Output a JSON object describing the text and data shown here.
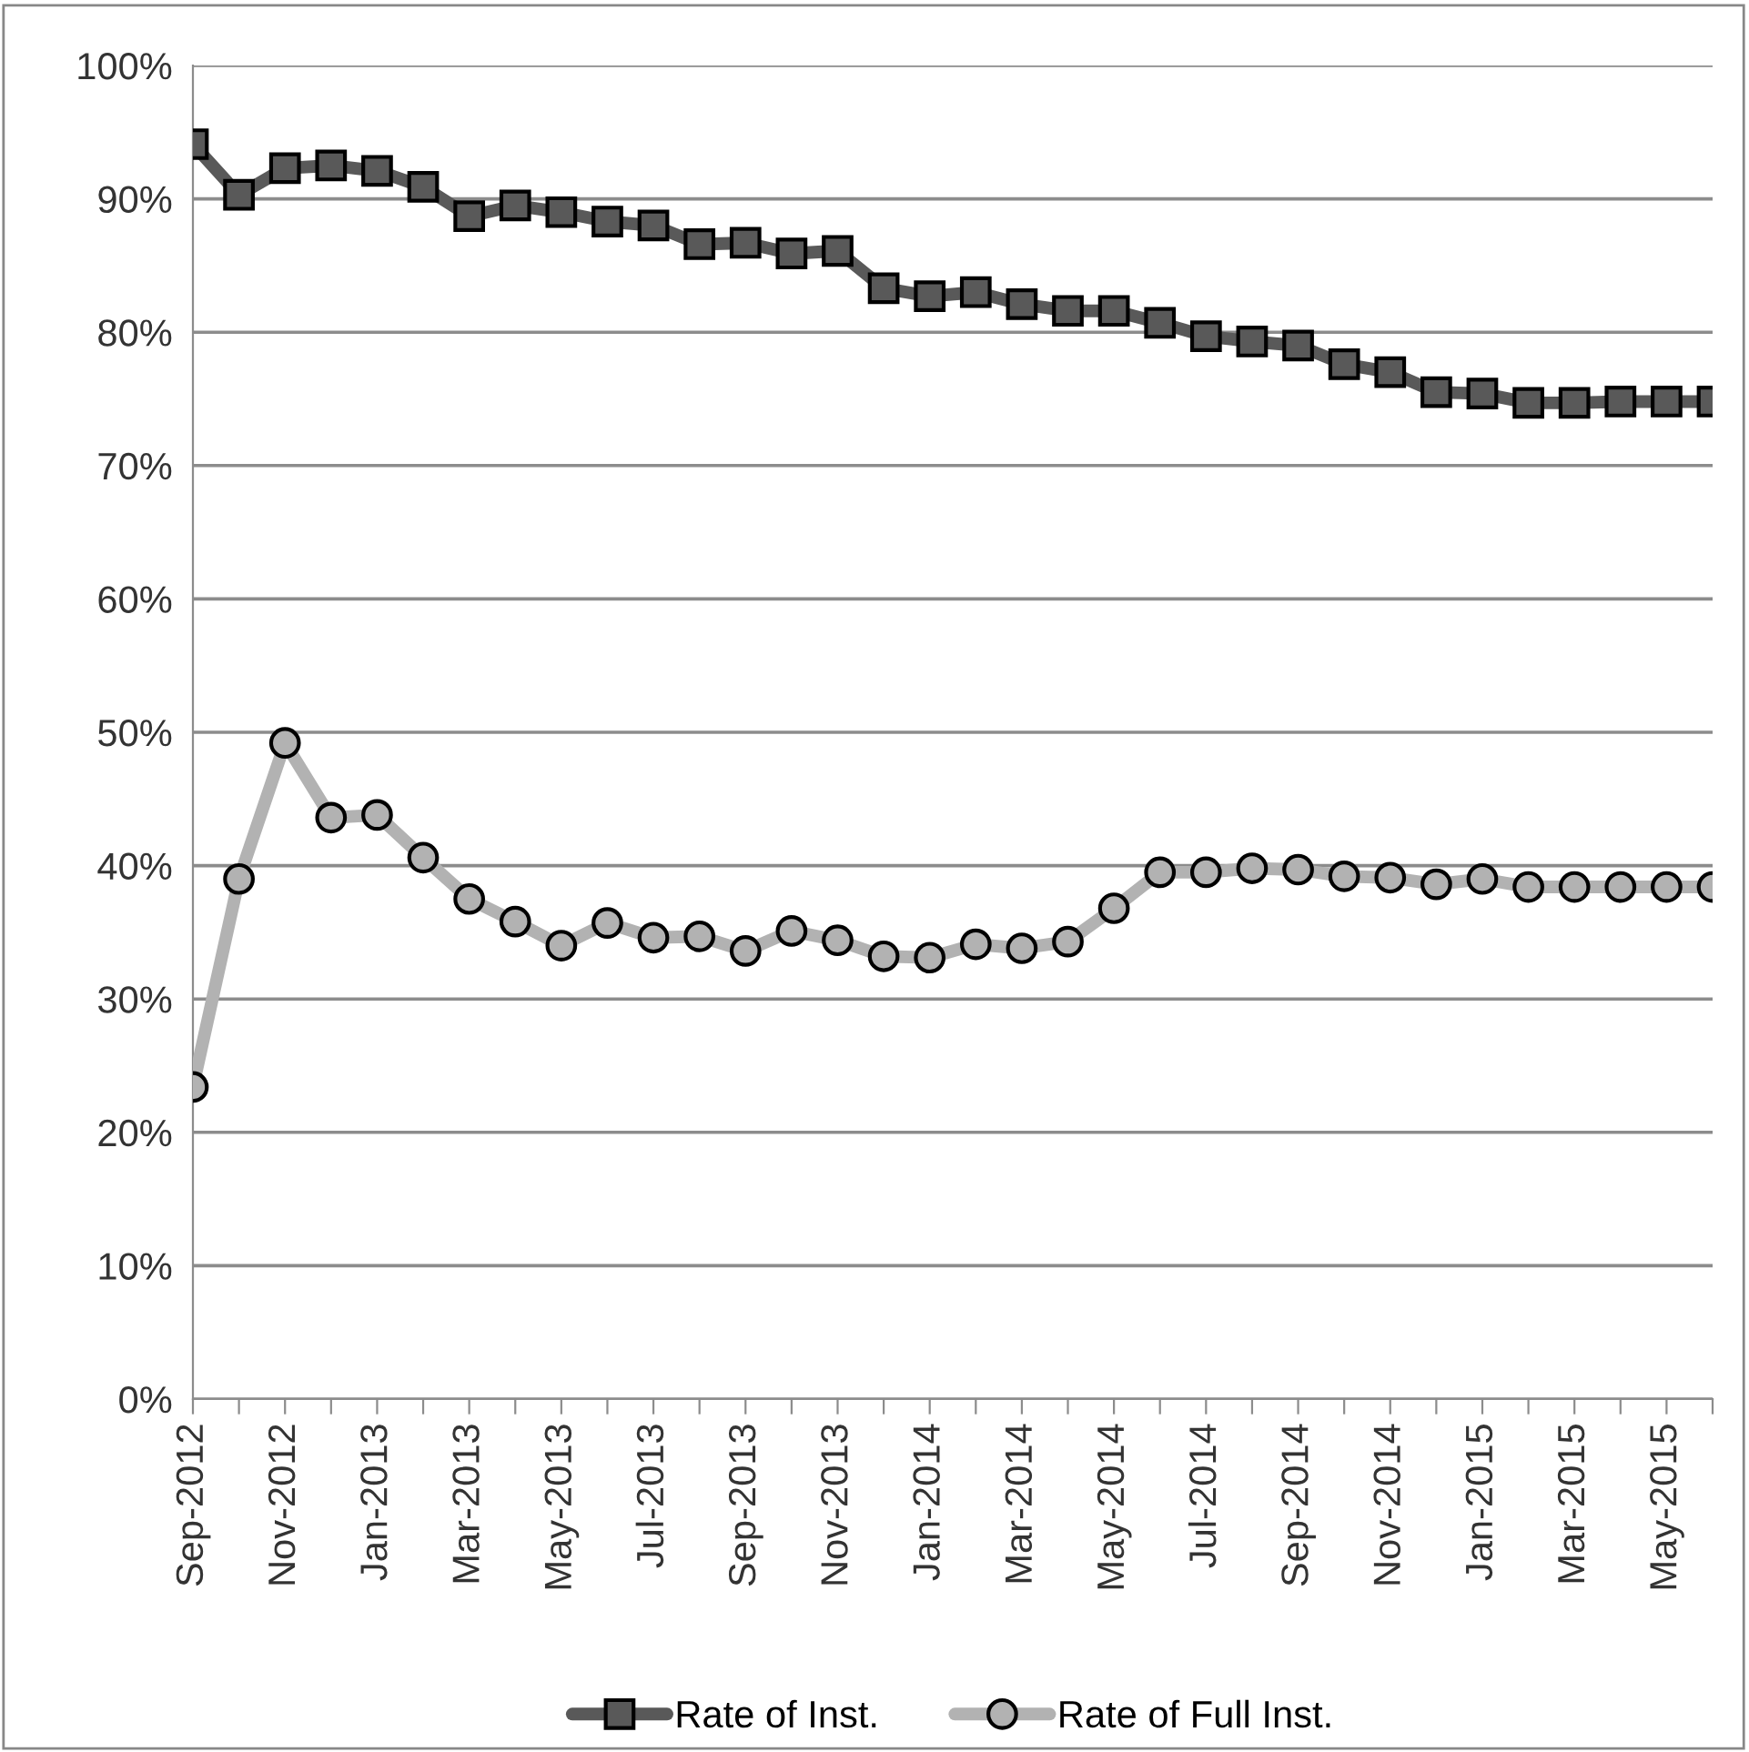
{
  "chart_data": {
    "type": "line",
    "categories": [
      "Sep-2012",
      null,
      "Nov-2012",
      null,
      "Jan-2013",
      null,
      "Mar-2013",
      null,
      "May-2013",
      null,
      "Jul-2013",
      null,
      "Sep-2013",
      null,
      "Nov-2013",
      null,
      "Jan-2014",
      null,
      "Mar-2014",
      null,
      "May-2014",
      null,
      "Jul-2014",
      null,
      "Sep-2014",
      null,
      "Nov-2014",
      null,
      "Jan-2015",
      null,
      "Mar-2015",
      null,
      "May-2015",
      null
    ],
    "series": [
      {
        "name": "Rate of Inst.",
        "color": "#595959",
        "marker": "square",
        "values": [
          94.1,
          90.3,
          92.3,
          92.5,
          92.1,
          90.9,
          88.7,
          89.5,
          89.0,
          88.3,
          88.0,
          86.6,
          86.7,
          85.9,
          86.1,
          83.3,
          82.7,
          83.0,
          82.1,
          81.6,
          81.6,
          80.7,
          79.7,
          79.3,
          79.0,
          77.6,
          77.0,
          75.5,
          75.4,
          74.7,
          74.7,
          74.8,
          74.8,
          74.8
        ]
      },
      {
        "name": "Rate of Full Inst.",
        "color": "#b2b2b2",
        "marker": "circle",
        "values": [
          23.4,
          39.0,
          49.2,
          43.6,
          43.8,
          40.6,
          37.5,
          35.8,
          34.0,
          35.7,
          34.6,
          34.7,
          33.6,
          35.1,
          34.4,
          33.2,
          33.1,
          34.1,
          33.8,
          34.3,
          36.8,
          39.5,
          39.5,
          39.8,
          39.7,
          39.2,
          39.1,
          38.6,
          39.0,
          38.4,
          38.4,
          38.4,
          38.4,
          38.4
        ]
      }
    ],
    "ylim": [
      0,
      100
    ],
    "yticks": [
      {
        "value": 0,
        "label": "0%"
      },
      {
        "value": 10,
        "label": "10%"
      },
      {
        "value": 20,
        "label": "20%"
      },
      {
        "value": 30,
        "label": "30%"
      },
      {
        "value": 40,
        "label": "40%"
      },
      {
        "value": 50,
        "label": "50%"
      },
      {
        "value": 60,
        "label": "60%"
      },
      {
        "value": 70,
        "label": "70%"
      },
      {
        "value": 80,
        "label": "80%"
      },
      {
        "value": 90,
        "label": "90%"
      },
      {
        "value": 100,
        "label": "100%"
      }
    ],
    "grid": "y",
    "legend": "bottom",
    "line_style": "solid"
  }
}
